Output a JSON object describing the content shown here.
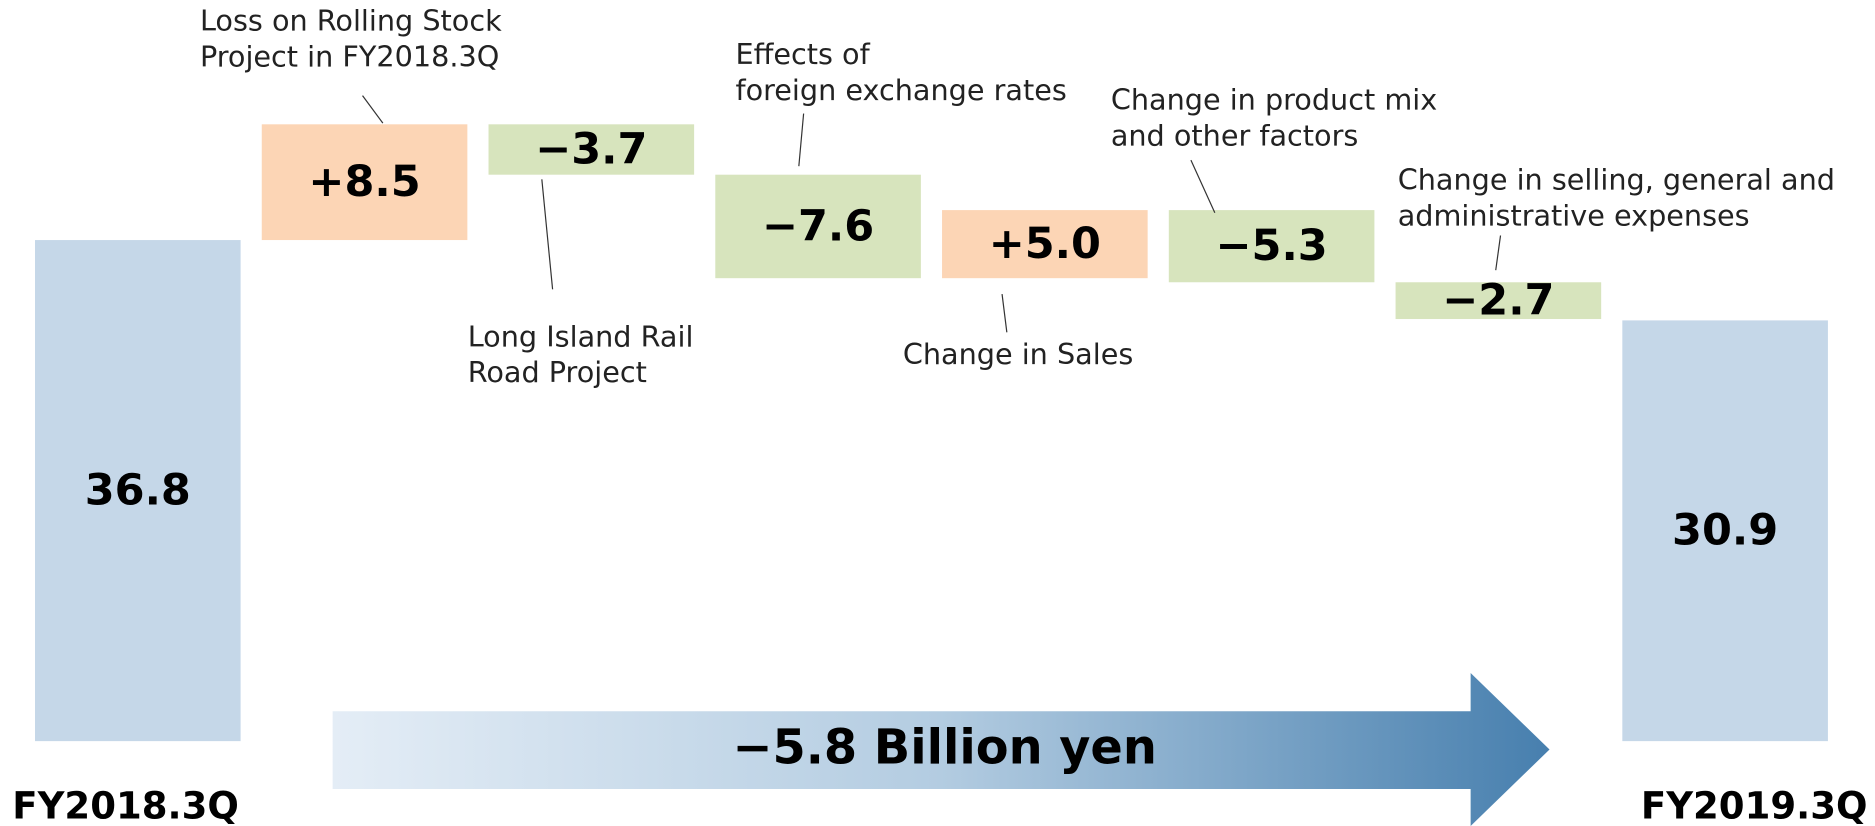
{
  "chart_data": {
    "type": "waterfall",
    "categories": [
      "FY2018.3Q",
      null,
      null,
      null,
      null,
      null,
      null,
      "FY2019.3Q"
    ],
    "values": [
      36.8,
      8.5,
      -3.7,
      -7.6,
      5.0,
      -5.3,
      -2.7,
      30.9
    ],
    "value_labels": [
      "36.8",
      "+8.5",
      "−3.7",
      "−7.6",
      "+5.0",
      "−5.3",
      "−2.7",
      "30.9"
    ],
    "annotations": [
      null,
      [
        "Loss on Rolling Stock",
        "Project in FY2018.3Q"
      ],
      [
        "Long Island Rail",
        "Road Project"
      ],
      [
        "Effects of",
        "foreign exchange rates"
      ],
      [
        "Change in Sales"
      ],
      [
        "Change in product mix",
        "and other factors"
      ],
      [
        "Change in selling, general and",
        "administrative expenses"
      ],
      null
    ],
    "colors": {
      "total": "#c5d7e8",
      "increase": "#fcd5b5",
      "decrease": "#d7e4bd"
    },
    "total_change": {
      "value": -5.8,
      "label": "−5.8 Billion yen"
    }
  }
}
